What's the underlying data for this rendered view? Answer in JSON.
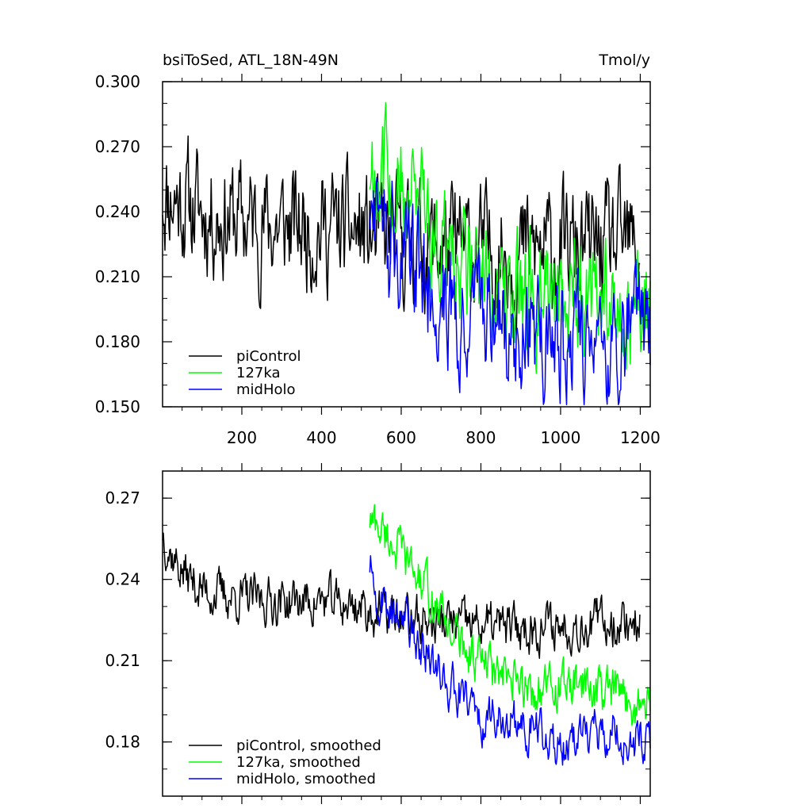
{
  "chart_data": [
    {
      "type": "line",
      "title": "bsiToSed, ATL_18N-49N",
      "units": "Tmol/y",
      "xlim": [
        1,
        1225
      ],
      "ylim": [
        0.15,
        0.3
      ],
      "xticks": [
        200,
        400,
        600,
        800,
        1000,
        1200
      ],
      "xtick_labels": [
        "200",
        "400",
        "600",
        "800",
        "1000",
        "1200"
      ],
      "yticks": [
        0.15,
        0.18,
        0.21,
        0.24,
        0.27,
        0.3
      ],
      "ytick_labels": [
        "0.150",
        "0.180",
        "0.210",
        "0.240",
        "0.270",
        "0.300"
      ],
      "legend": [
        "piControl",
        "127ka",
        "midHolo"
      ],
      "series": [
        {
          "name": "piControl",
          "color": "#000000",
          "x_range": [
            1,
            1200
          ],
          "x": [
            1,
            50,
            100,
            200,
            300,
            400,
            500,
            520,
            600,
            700,
            800,
            900,
            1000,
            1100,
            1200
          ],
          "values": [
            0.25,
            0.245,
            0.24,
            0.236,
            0.233,
            0.233,
            0.23,
            0.228,
            0.226,
            0.224,
            0.222,
            0.221,
            0.222,
            0.223,
            0.224
          ]
        },
        {
          "name": "127ka",
          "color": "#00ff00",
          "x_range": [
            521,
            1225
          ],
          "x": [
            521,
            540,
            560,
            600,
            650,
            700,
            750,
            800,
            850,
            900,
            950,
            1000,
            1050,
            1100,
            1150,
            1200,
            1225
          ],
          "values": [
            0.26,
            0.262,
            0.258,
            0.248,
            0.238,
            0.228,
            0.215,
            0.21,
            0.204,
            0.2,
            0.199,
            0.2,
            0.201,
            0.198,
            0.197,
            0.194,
            0.196
          ]
        },
        {
          "name": "midHolo",
          "color": "#0000ff",
          "x_range": [
            521,
            1225
          ],
          "x": [
            521,
            540,
            560,
            600,
            650,
            700,
            750,
            800,
            850,
            900,
            950,
            1000,
            1050,
            1100,
            1150,
            1200,
            1225
          ],
          "values": [
            0.24,
            0.23,
            0.226,
            0.22,
            0.212,
            0.203,
            0.196,
            0.188,
            0.186,
            0.185,
            0.182,
            0.18,
            0.181,
            0.184,
            0.182,
            0.18,
            0.181
          ]
        }
      ]
    },
    {
      "type": "line",
      "xlim": [
        1,
        1225
      ],
      "ylim": [
        0.16,
        0.28
      ],
      "xticks": [
        200,
        400,
        600,
        800,
        1000,
        1200
      ],
      "yticks": [
        0.18,
        0.21,
        0.24,
        0.27
      ],
      "ytick_labels": [
        "0.18",
        "0.21",
        "0.24",
        "0.27"
      ],
      "legend": [
        "piControl, smoothed",
        "127ka, smoothed",
        "midHolo, smoothed"
      ],
      "series": [
        {
          "name": "piControl, smoothed",
          "color": "#000000",
          "x_range": [
            1,
            1200
          ],
          "x": [
            1,
            20,
            50,
            100,
            200,
            300,
            400,
            500,
            520,
            600,
            700,
            800,
            900,
            1000,
            1100,
            1200
          ],
          "values": [
            0.258,
            0.25,
            0.243,
            0.236,
            0.233,
            0.232,
            0.232,
            0.23,
            0.228,
            0.226,
            0.224,
            0.223,
            0.222,
            0.223,
            0.224,
            0.225
          ]
        },
        {
          "name": "127ka, smoothed",
          "color": "#00ff00",
          "x_range": [
            521,
            1225
          ],
          "x": [
            521,
            540,
            580,
            620,
            660,
            700,
            750,
            800,
            850,
            900,
            950,
            1000,
            1050,
            1100,
            1150,
            1200,
            1225
          ],
          "values": [
            0.262,
            0.26,
            0.254,
            0.245,
            0.237,
            0.228,
            0.216,
            0.21,
            0.203,
            0.2,
            0.199,
            0.2,
            0.201,
            0.199,
            0.197,
            0.193,
            0.196
          ]
        },
        {
          "name": "midHolo, smoothed",
          "color": "#0000ff",
          "x_range": [
            521,
            1225
          ],
          "x": [
            521,
            540,
            580,
            620,
            660,
            700,
            750,
            800,
            850,
            900,
            950,
            1000,
            1050,
            1100,
            1150,
            1200,
            1225
          ],
          "values": [
            0.245,
            0.232,
            0.228,
            0.222,
            0.214,
            0.205,
            0.197,
            0.189,
            0.187,
            0.185,
            0.182,
            0.18,
            0.181,
            0.184,
            0.183,
            0.181,
            0.18
          ]
        }
      ]
    }
  ]
}
